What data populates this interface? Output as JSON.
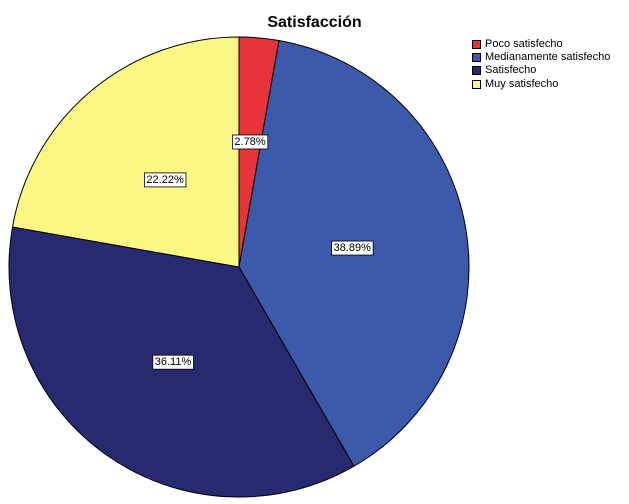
{
  "chart_data": {
    "type": "pie",
    "title": "Satisfacción",
    "slices": [
      {
        "label": "Poco satisfecho",
        "value": 2.78,
        "display": "2.78%",
        "color": "#e8333a"
      },
      {
        "label": "Medianamente satisfecho",
        "value": 38.89,
        "display": "38.89%",
        "color": "#3d59ab"
      },
      {
        "label": "Satisfecho",
        "value": 36.11,
        "display": "36.11%",
        "color": "#272a6f"
      },
      {
        "label": "Muy satisfecho",
        "value": 22.22,
        "display": "22.22%",
        "color": "#fbf883"
      }
    ],
    "start_angle": "12 o'clock",
    "direction": "clockwise",
    "legend_position": "top-right"
  }
}
